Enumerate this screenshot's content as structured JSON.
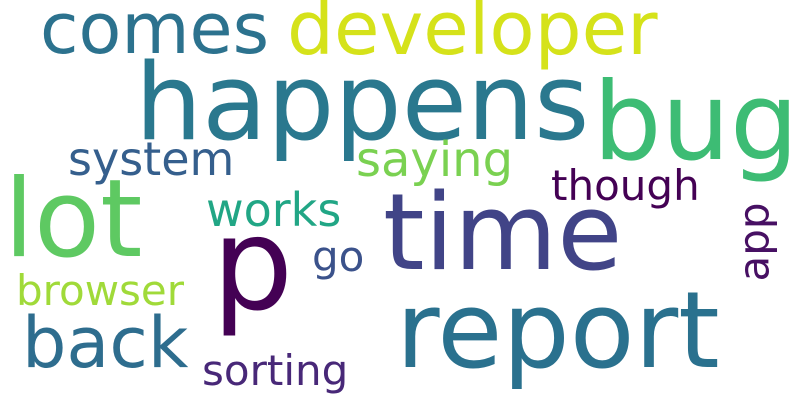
{
  "cloud": {
    "background": "#ffffff",
    "words": {
      "happens": {
        "text": "happens",
        "color": "#2a788e"
      },
      "time": {
        "text": "time",
        "color": "#414487"
      },
      "report": {
        "text": "report",
        "color": "#2a718e"
      },
      "p": {
        "text": "p",
        "color": "#440154"
      },
      "lot": {
        "text": "lot",
        "color": "#5ec962"
      },
      "bug": {
        "text": "bug",
        "color": "#3dbc74"
      },
      "developer": {
        "text": "developer",
        "color": "#d5e21a"
      },
      "comes": {
        "text": "comes",
        "color": "#2c728e"
      },
      "back": {
        "text": "back",
        "color": "#2e6d8e"
      },
      "system": {
        "text": "system",
        "color": "#355f8d"
      },
      "saying": {
        "text": "saying",
        "color": "#7ad151"
      },
      "though": {
        "text": "though",
        "color": "#440154"
      },
      "works": {
        "text": "works",
        "color": "#21a685"
      },
      "go": {
        "text": "go",
        "color": "#3b528b"
      },
      "browser": {
        "text": "browser",
        "color": "#a0da39"
      },
      "sorting": {
        "text": "sorting",
        "color": "#482878"
      },
      "app": {
        "text": "app",
        "color": "#471063"
      }
    }
  }
}
